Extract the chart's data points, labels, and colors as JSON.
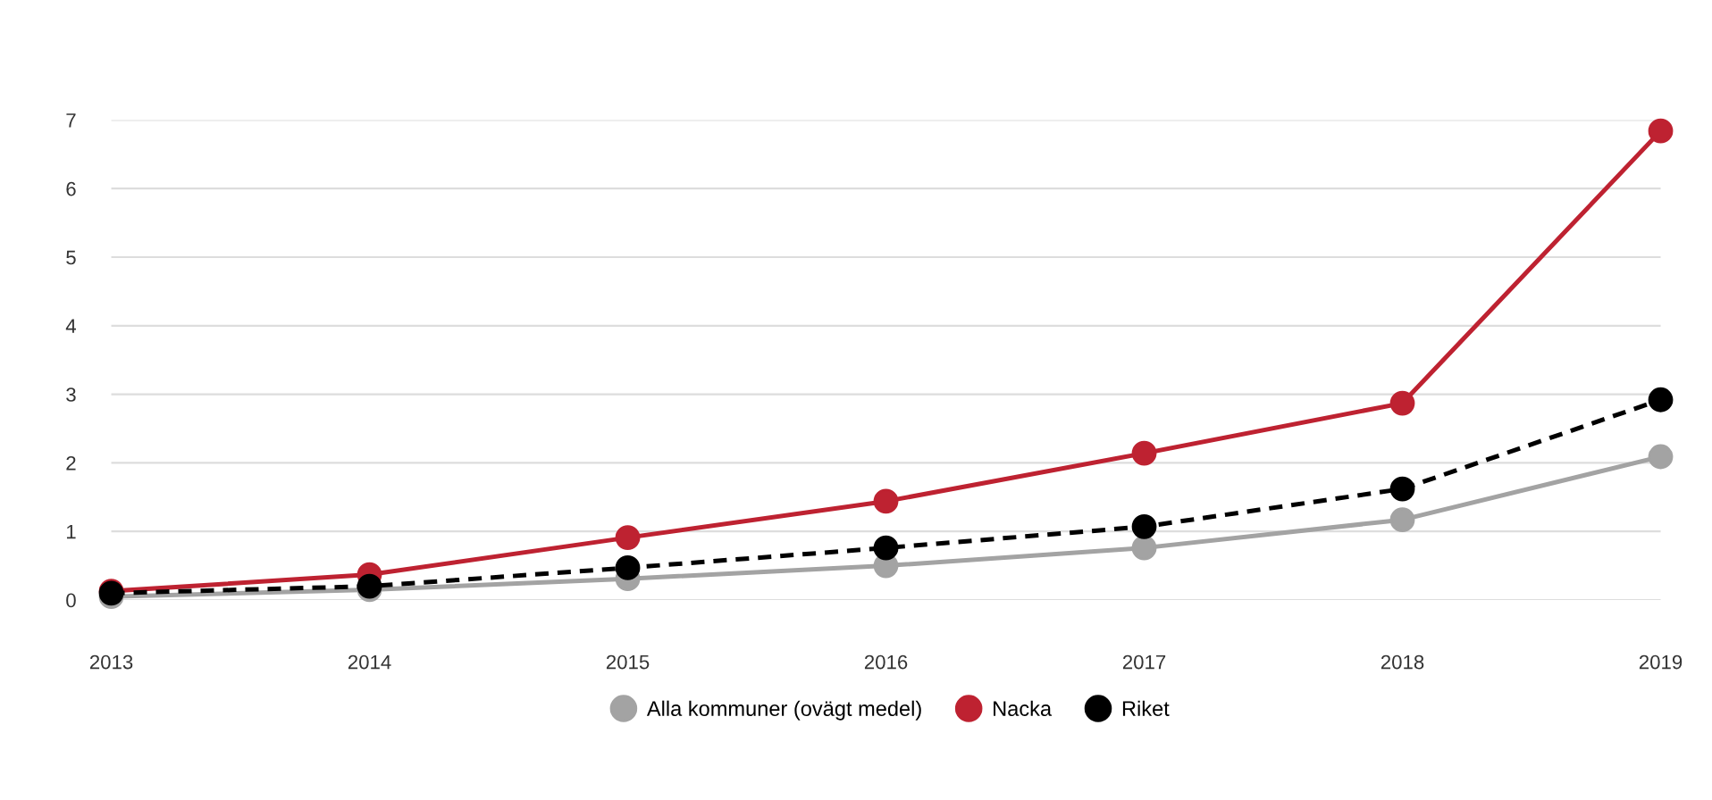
{
  "chart_data": {
    "type": "line",
    "categories": [
      "2013",
      "2014",
      "2015",
      "2016",
      "2017",
      "2018",
      "2019"
    ],
    "series": [
      {
        "name": "Alla kommuner (ovägt medel)",
        "color": "#a3a3a3",
        "line_style": "solid",
        "values": [
          0.05,
          0.15,
          0.31,
          0.5,
          0.76,
          1.17,
          2.09
        ]
      },
      {
        "name": "Nacka",
        "color": "#be2231",
        "line_style": "solid",
        "values": [
          0.13,
          0.37,
          0.91,
          1.44,
          2.14,
          2.87,
          6.84
        ]
      },
      {
        "name": "Riket",
        "color": "#000000",
        "line_style": "dashed",
        "values": [
          0.1,
          0.2,
          0.47,
          0.76,
          1.07,
          1.62,
          2.92
        ]
      }
    ],
    "ylim": [
      0,
      7
    ],
    "yticks": [
      0,
      1,
      2,
      3,
      4,
      5,
      6,
      7
    ],
    "grid": "y",
    "legend": "bottom",
    "marker": "circle"
  }
}
